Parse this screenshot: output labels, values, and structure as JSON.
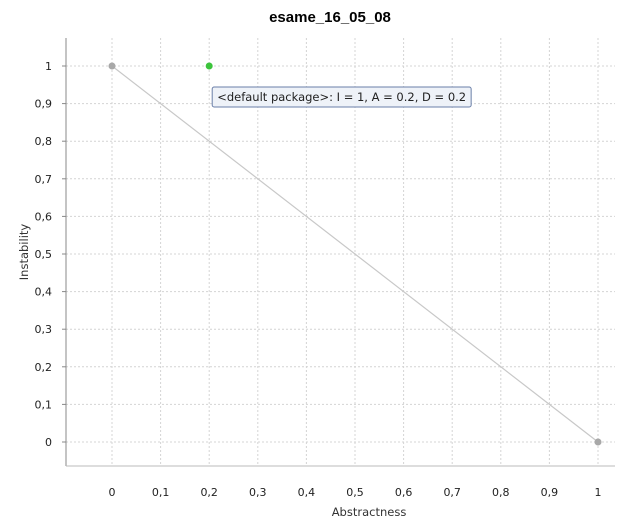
{
  "chart_data": {
    "type": "scatter",
    "title": "esame_16_05_08",
    "xlabel": "Abstractness",
    "ylabel": "Instability",
    "xlim": [
      0,
      1
    ],
    "ylim": [
      0,
      1
    ],
    "x_ticks": [
      "0",
      "0,1",
      "0,2",
      "0,3",
      "0,4",
      "0,5",
      "0,6",
      "0,7",
      "0,8",
      "0,9",
      "1"
    ],
    "y_ticks": [
      "0",
      "0,1",
      "0,2",
      "0,3",
      "0,4",
      "0,5",
      "0,6",
      "0,7",
      "0,8",
      "0,9",
      "1"
    ],
    "grid": true,
    "main_sequence": {
      "from": [
        0,
        1
      ],
      "to": [
        1,
        0
      ],
      "color": "#c8c8c8"
    },
    "endpoints": [
      {
        "x": 0,
        "y": 1
      },
      {
        "x": 1,
        "y": 0
      }
    ],
    "points": [
      {
        "x": 0.2,
        "y": 1,
        "color": "#3cc43c"
      }
    ],
    "tooltip": {
      "text": "<default package>: I = 1, A = 0.2, D = 0.2",
      "anchor_x": 0.2,
      "anchor_y": 1
    }
  }
}
